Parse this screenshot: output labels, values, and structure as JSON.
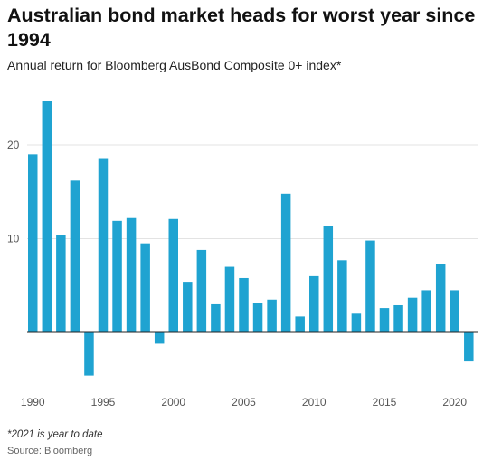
{
  "chart_data": {
    "type": "bar",
    "title": "Australian bond market heads for worst year since 1994",
    "subtitle": "Annual return for Bloomberg AusBond Composite 0+ index*",
    "categories": [
      1990,
      1991,
      1992,
      1993,
      1994,
      1995,
      1996,
      1997,
      1998,
      1999,
      2000,
      2001,
      2002,
      2003,
      2004,
      2005,
      2006,
      2007,
      2008,
      2009,
      2010,
      2011,
      2012,
      2013,
      2014,
      2015,
      2016,
      2017,
      2018,
      2019,
      2020,
      2021
    ],
    "values": [
      19.0,
      24.7,
      10.4,
      16.2,
      -4.6,
      18.5,
      11.9,
      12.2,
      9.5,
      -1.2,
      12.1,
      5.4,
      8.8,
      3.0,
      7.0,
      5.8,
      3.1,
      3.5,
      14.8,
      1.7,
      6.0,
      11.4,
      7.7,
      2.0,
      9.8,
      2.6,
      2.9,
      3.7,
      4.5,
      7.3,
      4.5,
      -3.1
    ],
    "ylim": [
      -6,
      27
    ],
    "yticks": [
      10,
      20
    ],
    "xtick_labels": [
      "1990",
      "1995",
      "2000",
      "2005",
      "2010",
      "2015",
      "2020"
    ],
    "xlabel": "",
    "ylabel": "",
    "grid": true,
    "bar_color": "#1fa3d1"
  },
  "footnote": "*2021 is year to date",
  "source": "Source: Bloomberg"
}
